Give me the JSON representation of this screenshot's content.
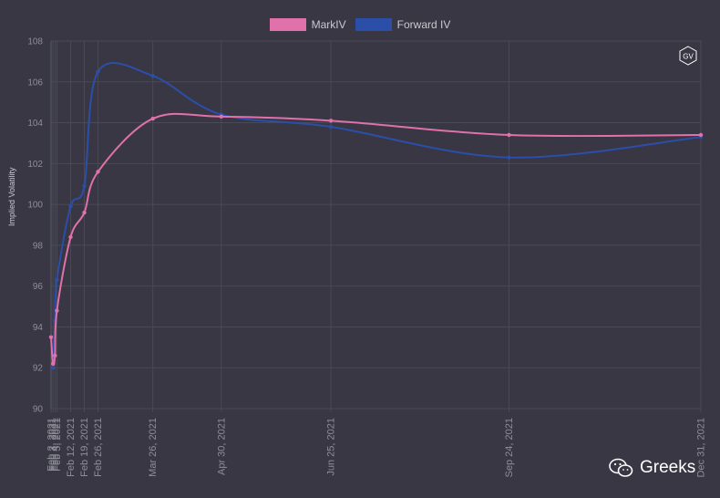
{
  "chart_data": {
    "type": "line",
    "ylabel": "Implied Volatility",
    "ylim": [
      90,
      108
    ],
    "yticks": [
      90,
      92,
      94,
      96,
      98,
      100,
      102,
      104,
      106,
      108
    ],
    "x": [
      "Feb 2, 2021",
      "Feb 3, 2021",
      "Feb 4, 2021",
      "Feb 5, 2021",
      "Feb 12, 2021",
      "Feb 19, 2021",
      "Feb 26, 2021",
      "Mar 26, 2021",
      "Apr 30, 2021",
      "Jun 25, 2021",
      "Sep 24, 2021",
      "Dec 31, 2021"
    ],
    "tick_labels": [
      "Feb 2, 2021",
      "Feb 3, 2021",
      "Feb 4, 2021",
      "Feb 5, 2021",
      "Feb 12, 2021",
      "Feb 19, 2021",
      "Feb 26, 2021",
      "Mar 26, 2021",
      "Apr 30, 2021",
      "Jun 25, 2021",
      "Sep 24, 2021",
      "Dec 31, 2021"
    ],
    "grid": true,
    "legend_position": "top-center",
    "series": [
      {
        "name": "MarkIV",
        "color": "#e071aa",
        "values": [
          93.5,
          92.2,
          92.6,
          94.8,
          98.4,
          99.6,
          101.6,
          104.2,
          104.3,
          104.1,
          103.4,
          103.4
        ]
      },
      {
        "name": "Forward IV",
        "color": "#2b4fa8",
        "values": [
          null,
          92.0,
          94.3,
          96.3,
          99.9,
          100.9,
          106.5,
          106.3,
          104.4,
          103.8,
          102.3,
          103.3
        ]
      }
    ]
  },
  "legend": {
    "markiv_label": "MarkIV",
    "forward_label": "Forward IV"
  },
  "badge": {
    "text": "GV"
  },
  "watermark": {
    "text": "Greeks",
    "icon": "wechat-icon"
  },
  "colors": {
    "background": "#383743",
    "grid": "#4a4956",
    "tick_text": "#8e8e98"
  }
}
